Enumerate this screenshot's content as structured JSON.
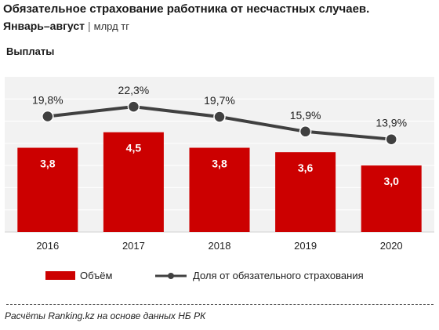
{
  "header": {
    "title": "Обязательное страхование работника от несчастных случаев.",
    "period": "Январь–август",
    "separator": "|",
    "unit": "млрд тг",
    "section": "Выплаты"
  },
  "legend": {
    "bars": "Объём",
    "line": "Доля от обязательного страхования"
  },
  "footer": {
    "source": "Расчёты Ranking.kz на основе данных НБ РК"
  },
  "colors": {
    "bar": "#cc0000",
    "line": "#404040",
    "plot_bg": "#f2f2f2",
    "grid": "#ffffff"
  },
  "chart_data": {
    "type": "bar",
    "categories": [
      "2016",
      "2017",
      "2018",
      "2019",
      "2020"
    ],
    "series": [
      {
        "type": "bar",
        "axis": "primary",
        "values": [
          3.8,
          4.5,
          3.8,
          3.6,
          3.0
        ],
        "labels": [
          "3,8",
          "4,5",
          "3,8",
          "3,6",
          "3,0"
        ]
      },
      {
        "type": "line",
        "axis": "secondary",
        "values": [
          19.8,
          22.3,
          19.7,
          15.9,
          13.9
        ],
        "labels": [
          "19,8%",
          "22,3%",
          "19,7%",
          "15,9%",
          "13,9%"
        ]
      }
    ],
    "ylim": [
      0,
      7
    ],
    "y2lim": [
      -10,
      30
    ],
    "grid": true,
    "legend_position": "bottom"
  }
}
